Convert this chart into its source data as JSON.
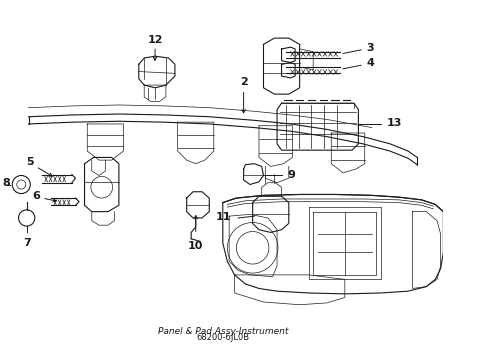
{
  "title": "Panel & Pad Assy-Instrument",
  "part_number": "68200-6JL0B",
  "background_color": "#ffffff",
  "line_color": "#1a1a1a",
  "fig_width": 4.89,
  "fig_height": 3.6,
  "dpi": 100
}
